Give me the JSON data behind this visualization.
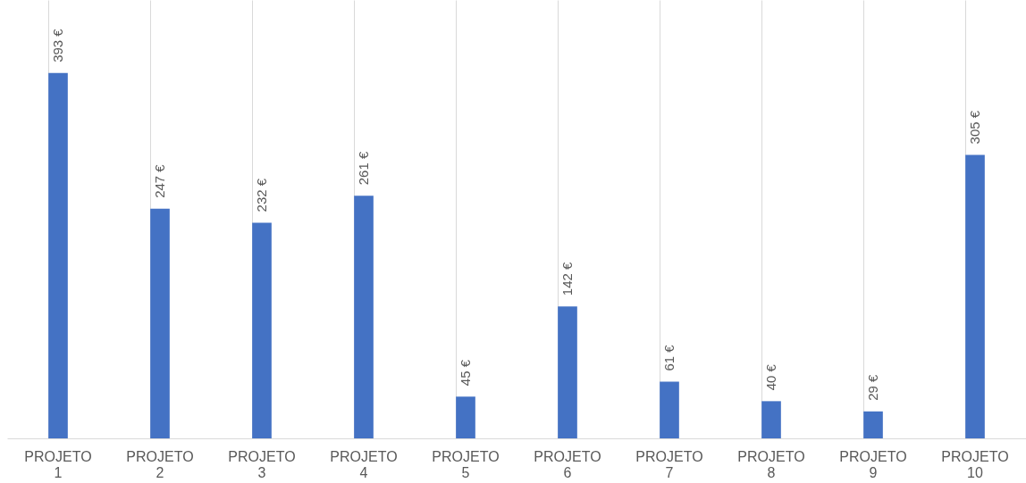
{
  "chart_data": {
    "type": "bar",
    "categories": [
      "PROJETO 1",
      "PROJETO 2",
      "PROJETO 3",
      "PROJETO 4",
      "PROJETO 5",
      "PROJETO 6",
      "PROJETO 7",
      "PROJETO 8",
      "PROJETO 9",
      "PROJETO 10"
    ],
    "values": [
      393,
      247,
      232,
      261,
      45,
      142,
      61,
      40,
      29,
      305
    ],
    "value_labels": [
      "393 €",
      "247 €",
      "232 €",
      "261 €",
      "45 €",
      "142 €",
      "61 €",
      "40 €",
      "29 €",
      "305 €"
    ],
    "color": "#4472c4",
    "grid": "x"
  }
}
